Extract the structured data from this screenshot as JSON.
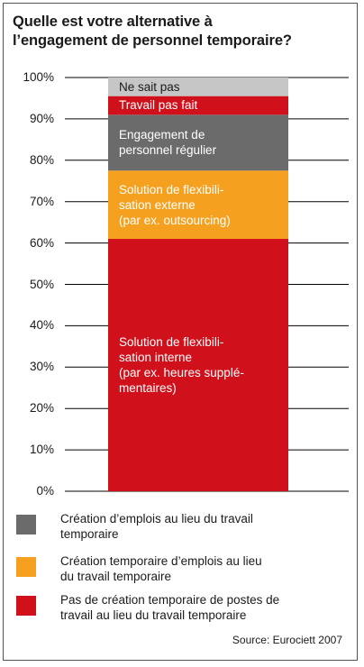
{
  "chart_data": {
    "type": "bar",
    "stacked": true,
    "title": "Quelle est votre alternative à\nl’engagement de personnel temporaire?",
    "y_ticks": [
      "100%",
      "90%",
      "80%",
      "70%",
      "60%",
      "50%",
      "40%",
      "30%",
      "20%",
      "10%",
      "0%"
    ],
    "ylim": [
      0,
      100
    ],
    "grid": true,
    "segments": [
      {
        "name": "Solution de flexibili-\nsation interne\n(par ex. heures supplé-\nmentaires)",
        "value": 61,
        "color": "#d0111b"
      },
      {
        "name": "Solution de flexibili-\nsation externe\n(par ex. outsourcing)",
        "value": 16.5,
        "color": "#f5a01e"
      },
      {
        "name": "Engagement de\npersonnel régulier",
        "value": 13.5,
        "color": "#6b6b6b"
      },
      {
        "name": "Travail pas fait",
        "value": 4.5,
        "color": "#d0111b"
      },
      {
        "name": "Ne sait pas",
        "value": 4.5,
        "color": "#c6c6c6"
      }
    ],
    "legend": [
      {
        "label": "Création d’emplois au lieu du travail\ntemporaire",
        "color": "#6b6b6b",
        "icon": "gray-square"
      },
      {
        "label": "Création temporaire d’emplois au lieu\ndu travail temporaire",
        "color": "#f5a01e",
        "icon": "orange-square"
      },
      {
        "label": "Pas de création temporaire de postes de\ntravail au lieu du travail temporaire",
        "color": "#d0111b",
        "icon": "red-square"
      }
    ],
    "source": "Source: Eurociett 2007"
  }
}
